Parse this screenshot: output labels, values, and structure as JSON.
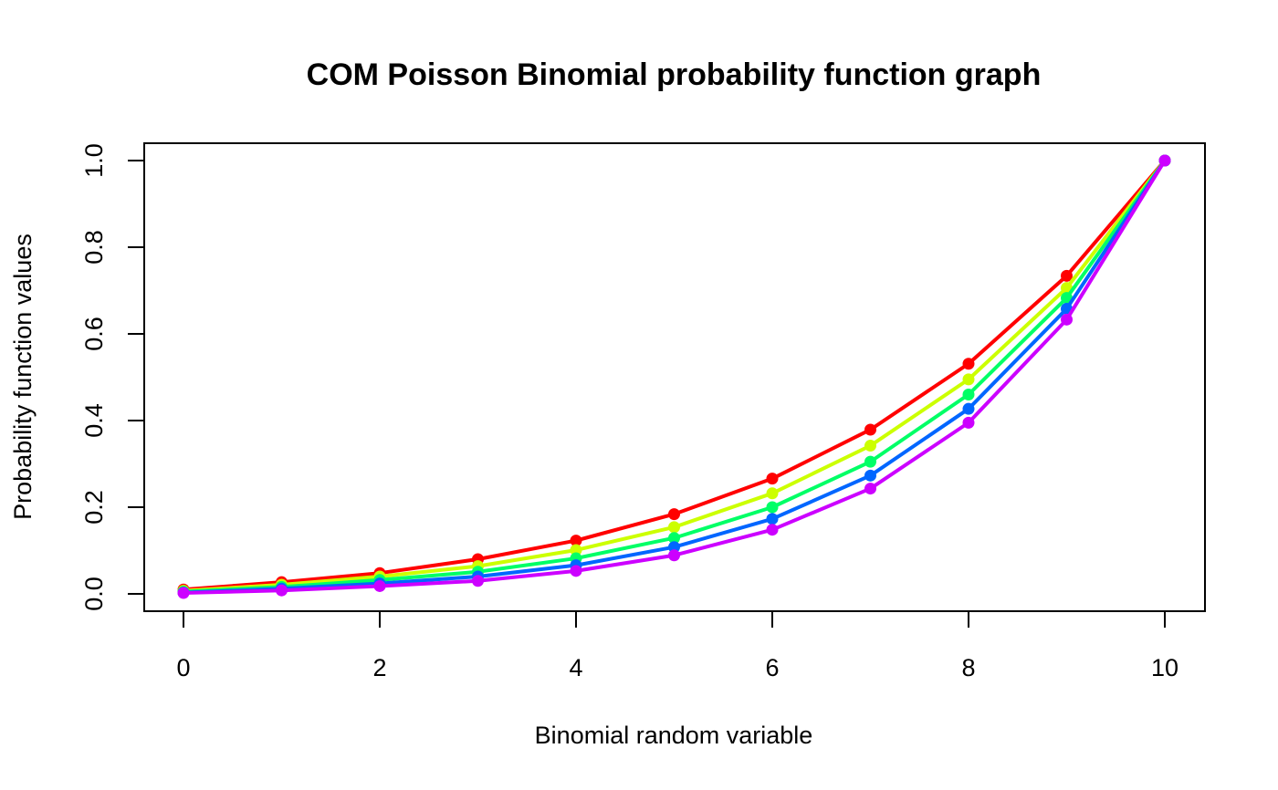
{
  "chart_data": {
    "type": "line",
    "title": "COM Poisson Binomial probability function graph",
    "xlabel": "Binomial random variable",
    "ylabel": "Probability function values",
    "x": [
      0,
      1,
      2,
      3,
      4,
      5,
      6,
      7,
      8,
      9,
      10
    ],
    "xlim": [
      0,
      10
    ],
    "ylim": [
      0,
      1
    ],
    "x_ticks": [
      0,
      2,
      4,
      6,
      8,
      10
    ],
    "y_ticks": [
      0,
      0.2,
      0.4,
      0.6,
      0.8,
      1
    ],
    "x_tick_labels": [
      "0",
      "2",
      "4",
      "6",
      "8",
      "10"
    ],
    "y_tick_labels": [
      "0.0",
      "0.2",
      "0.4",
      "0.6",
      "0.8",
      "1.0"
    ],
    "grid": false,
    "legend": "none",
    "series": [
      {
        "color": "#FF0000",
        "values": [
          0.01,
          0.027,
          0.048,
          0.08,
          0.123,
          0.184,
          0.266,
          0.379,
          0.531,
          0.734,
          1.0
        ]
      },
      {
        "color": "#CCFF00",
        "values": [
          0.007,
          0.021,
          0.04,
          0.064,
          0.101,
          0.154,
          0.232,
          0.342,
          0.495,
          0.706,
          1.0
        ]
      },
      {
        "color": "#00FF66",
        "values": [
          0.005,
          0.016,
          0.032,
          0.051,
          0.082,
          0.129,
          0.2,
          0.305,
          0.46,
          0.683,
          1.0
        ]
      },
      {
        "color": "#0066FF",
        "values": [
          0.003,
          0.012,
          0.024,
          0.04,
          0.066,
          0.108,
          0.173,
          0.273,
          0.427,
          0.658,
          1.0
        ]
      },
      {
        "color": "#CC00FF",
        "values": [
          0.002,
          0.008,
          0.018,
          0.03,
          0.053,
          0.089,
          0.148,
          0.243,
          0.395,
          0.633,
          1.0
        ]
      }
    ]
  }
}
